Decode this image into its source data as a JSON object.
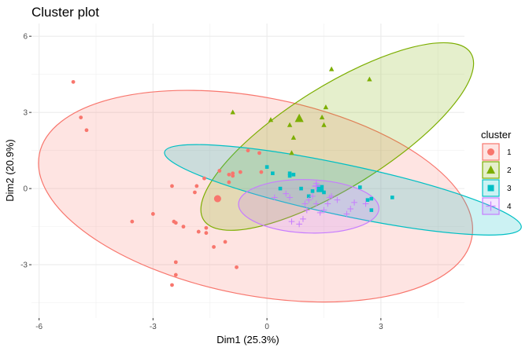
{
  "chart_data": {
    "type": "scatter",
    "title": "Cluster plot",
    "xlabel": "Dim1 (25.3%)",
    "ylabel": "Dim2 (20.9%)",
    "xlim": [
      -6.2,
      5.2
    ],
    "ylim": [
      -5.1,
      6.5
    ],
    "xticks": [
      -6,
      -3,
      0,
      3
    ],
    "yticks": [
      -3,
      0,
      3,
      6
    ],
    "x_tick_labels": [
      "-6",
      "-3",
      "0",
      "3"
    ],
    "y_tick_labels": [
      "-3",
      "0",
      "3",
      "6"
    ],
    "grid": true,
    "legend": {
      "title": "cluster",
      "position": "right"
    },
    "series": [
      {
        "name": "1",
        "color": "#F8766D",
        "fill": "#F8766D",
        "shape": "circle",
        "center": [
          -1.3,
          -0.4
        ],
        "ellipse": {
          "cx": -0.3,
          "cy": -0.3,
          "rx": 5.8,
          "ry": 3.9,
          "angle": -11
        },
        "points": [
          [
            -5.1,
            4.2
          ],
          [
            -4.9,
            2.8
          ],
          [
            -4.75,
            2.3
          ],
          [
            -3.55,
            -1.3
          ],
          [
            -3.0,
            -1.0
          ],
          [
            -2.5,
            0.1
          ],
          [
            -2.45,
            -1.3
          ],
          [
            -2.4,
            -2.9
          ],
          [
            -2.4,
            -3.4
          ],
          [
            -2.5,
            -3.8
          ],
          [
            -2.4,
            -1.35
          ],
          [
            -2.2,
            -1.5
          ],
          [
            -1.8,
            -1.7
          ],
          [
            -1.6,
            -1.55
          ],
          [
            -1.6,
            -1.75
          ],
          [
            -1.4,
            -2.3
          ],
          [
            -1.1,
            -2.1
          ],
          [
            -0.8,
            -3.1
          ],
          [
            -1.65,
            0.4
          ],
          [
            -1.85,
            0.1
          ],
          [
            -1.9,
            -0.15
          ],
          [
            -1.25,
            0.7
          ],
          [
            -1.0,
            0.55
          ],
          [
            -0.9,
            0.6
          ],
          [
            -0.9,
            0.5
          ],
          [
            -0.7,
            0.65
          ],
          [
            -0.5,
            1.5
          ],
          [
            -0.2,
            1.4
          ],
          [
            -0.15,
            0.65
          ],
          [
            -1.0,
            0.25
          ]
        ]
      },
      {
        "name": "2",
        "color": "#7CAE00",
        "fill": "#7CAE00",
        "shape": "triangle",
        "center": [
          0.85,
          2.75
        ],
        "ellipse": {
          "cx": 1.85,
          "cy": 2.05,
          "rx": 4.15,
          "ry": 2.0,
          "angle": 32
        },
        "points": [
          [
            -0.9,
            3.0
          ],
          [
            0.1,
            2.7
          ],
          [
            0.6,
            2.5
          ],
          [
            0.65,
            1.4
          ],
          [
            0.7,
            2.0
          ],
          [
            1.45,
            2.8
          ],
          [
            1.55,
            3.2
          ],
          [
            1.5,
            2.5
          ],
          [
            1.7,
            4.7
          ],
          [
            2.7,
            4.3
          ]
        ]
      },
      {
        "name": "3",
        "color": "#00BFC4",
        "fill": "#00BFC4",
        "shape": "square",
        "center": [
          1.4,
          0.0
        ],
        "ellipse": {
          "cx": 2.0,
          "cy": -0.05,
          "rx": 4.8,
          "ry": 1.0,
          "angle": -12
        },
        "points": [
          [
            0.0,
            0.85
          ],
          [
            0.15,
            0.6
          ],
          [
            0.35,
            0.0
          ],
          [
            0.6,
            0.6
          ],
          [
            0.6,
            0.5
          ],
          [
            0.7,
            0.55
          ],
          [
            0.9,
            0.0
          ],
          [
            1.1,
            -0.3
          ],
          [
            1.2,
            -0.1
          ],
          [
            1.5,
            -0.15
          ],
          [
            2.45,
            0.05
          ],
          [
            2.65,
            -0.45
          ],
          [
            2.75,
            -0.85
          ],
          [
            3.3,
            -0.35
          ],
          [
            2.75,
            -0.4
          ]
        ]
      },
      {
        "name": "4",
        "color": "#C77CFF",
        "fill": "#C77CFF",
        "shape": "plus",
        "center": [
          1.3,
          0.1
        ],
        "ellipse": {
          "cx": 1.1,
          "cy": -0.7,
          "rx": 1.85,
          "ry": 1.05,
          "angle": -2
        },
        "points": [
          [
            0.2,
            -0.35
          ],
          [
            0.5,
            -0.2
          ],
          [
            0.6,
            -0.35
          ],
          [
            0.65,
            -1.3
          ],
          [
            0.85,
            -1.4
          ],
          [
            0.95,
            -1.2
          ],
          [
            1.05,
            -0.85
          ],
          [
            1.1,
            -0.45
          ],
          [
            1.2,
            -0.3
          ],
          [
            1.3,
            0.2
          ],
          [
            1.4,
            -0.95
          ],
          [
            1.5,
            -0.85
          ],
          [
            1.6,
            -0.6
          ],
          [
            1.65,
            -0.35
          ],
          [
            1.7,
            -0.3
          ],
          [
            1.85,
            -0.45
          ],
          [
            2.1,
            -1.0
          ],
          [
            2.2,
            -0.8
          ],
          [
            2.3,
            -0.55
          ],
          [
            2.6,
            -0.6
          ],
          [
            1.3,
            -0.6
          ],
          [
            1.0,
            -0.6
          ]
        ]
      }
    ]
  }
}
